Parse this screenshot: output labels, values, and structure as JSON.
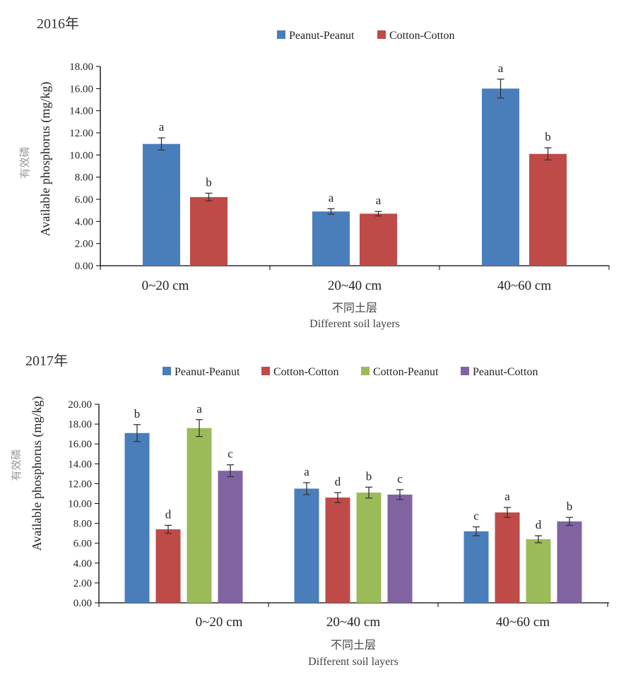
{
  "chart_data": [
    {
      "type": "bar",
      "title": "2016年",
      "ylabel_cn": "有效磷",
      "ylabel_en": "Available phosphorus (mg/kg)",
      "xlabel_cn": "不同土层",
      "xlabel_en": "Different soil layers",
      "categories": [
        "0~20 cm",
        "20~40 cm",
        "40~60 cm"
      ],
      "ylim": [
        0,
        18
      ],
      "ystep": 2,
      "ytick_labels": [
        "0.00",
        "2.00",
        "4.00",
        "6.00",
        "8.00",
        "10.00",
        "12.00",
        "14.00",
        "16.00",
        "18.00"
      ],
      "grid": false,
      "legend_position": "top",
      "series": [
        {
          "name": "Peanut-Peanut",
          "color": "#4a7ebb",
          "values": [
            11.0,
            4.9,
            16.0
          ],
          "errors": [
            0.55,
            0.25,
            0.85
          ],
          "letters": [
            "a",
            "a",
            "a"
          ]
        },
        {
          "name": "Cotton-Cotton",
          "color": "#be4b48",
          "values": [
            6.2,
            4.7,
            10.1
          ],
          "errors": [
            0.35,
            0.2,
            0.55
          ],
          "letters": [
            "b",
            "a",
            "b"
          ]
        }
      ]
    },
    {
      "type": "bar",
      "title": "2017年",
      "ylabel_cn": "有效磷",
      "ylabel_en": "Available phosphorus (mg/kg)",
      "xlabel_cn": "不同土层",
      "xlabel_en": "Different soil layers",
      "categories": [
        "0~20 cm",
        "20~40 cm",
        "40~60 cm"
      ],
      "ylim": [
        0,
        20
      ],
      "ystep": 2,
      "ytick_labels": [
        "0.00",
        "2.00",
        "4.00",
        "6.00",
        "8.00",
        "10.00",
        "12.00",
        "14.00",
        "16.00",
        "18.00",
        "20.00"
      ],
      "grid": false,
      "legend_position": "top",
      "series": [
        {
          "name": "Peanut-Peanut",
          "color": "#4a7ebb",
          "values": [
            17.1,
            11.5,
            7.2
          ],
          "errors": [
            0.85,
            0.6,
            0.45
          ],
          "letters": [
            "b",
            "a",
            "c"
          ]
        },
        {
          "name": "Cotton-Cotton",
          "color": "#be4b48",
          "values": [
            7.4,
            10.6,
            9.1
          ],
          "errors": [
            0.4,
            0.5,
            0.5
          ],
          "letters": [
            "d",
            "d",
            "a"
          ]
        },
        {
          "name": "Cotton-Peanut",
          "color": "#9bbb59",
          "values": [
            17.6,
            11.1,
            6.4
          ],
          "errors": [
            0.85,
            0.55,
            0.35
          ],
          "letters": [
            "a",
            "b",
            "d"
          ]
        },
        {
          "name": "Peanut-Cotton",
          "color": "#8064a2",
          "values": [
            13.3,
            10.9,
            8.2
          ],
          "errors": [
            0.6,
            0.5,
            0.4
          ],
          "letters": [
            "c",
            "c",
            "b"
          ]
        }
      ]
    }
  ]
}
